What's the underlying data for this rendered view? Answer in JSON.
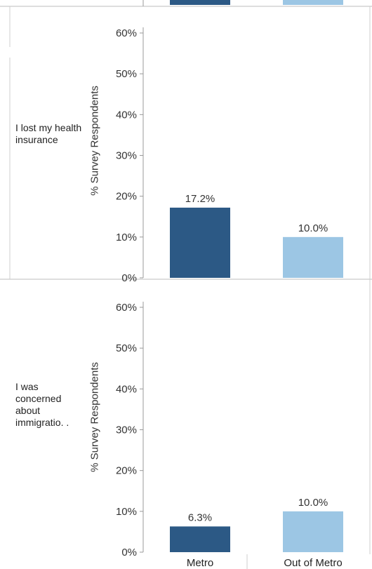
{
  "chart_data": [
    {
      "type": "bar",
      "row_label": "",
      "categories": [
        "Metro",
        "Out of Metro"
      ],
      "values": [
        null,
        null
      ],
      "colors": [
        "#2c5985",
        "#9cc6e4"
      ],
      "ylabel": "",
      "note": "Partially visible panel cut off at top"
    },
    {
      "type": "bar",
      "row_label": "I lost my health insurance",
      "categories": [
        "Metro",
        "Out of Metro"
      ],
      "values": [
        17.2,
        10.0
      ],
      "value_labels": [
        "17.2%",
        "10.0%"
      ],
      "colors": [
        "#2c5985",
        "#9cc6e4"
      ],
      "ylabel": "% Survey Respondents",
      "ylim": [
        0,
        60
      ],
      "yticks": [
        "0%",
        "10%",
        "20%",
        "30%",
        "40%",
        "50%",
        "60%"
      ]
    },
    {
      "type": "bar",
      "row_label": "I was concerned about immigratio. .",
      "categories": [
        "Metro",
        "Out of Metro"
      ],
      "values": [
        6.3,
        10.0
      ],
      "value_labels": [
        "6.3%",
        "10.0%"
      ],
      "colors": [
        "#2c5985",
        "#9cc6e4"
      ],
      "ylabel": "% Survey Respondents",
      "ylim": [
        0,
        60
      ],
      "yticks": [
        "0%",
        "10%",
        "20%",
        "30%",
        "40%",
        "50%",
        "60%"
      ]
    }
  ],
  "x_axis": {
    "labels": [
      "Metro",
      "Out of Metro"
    ]
  }
}
